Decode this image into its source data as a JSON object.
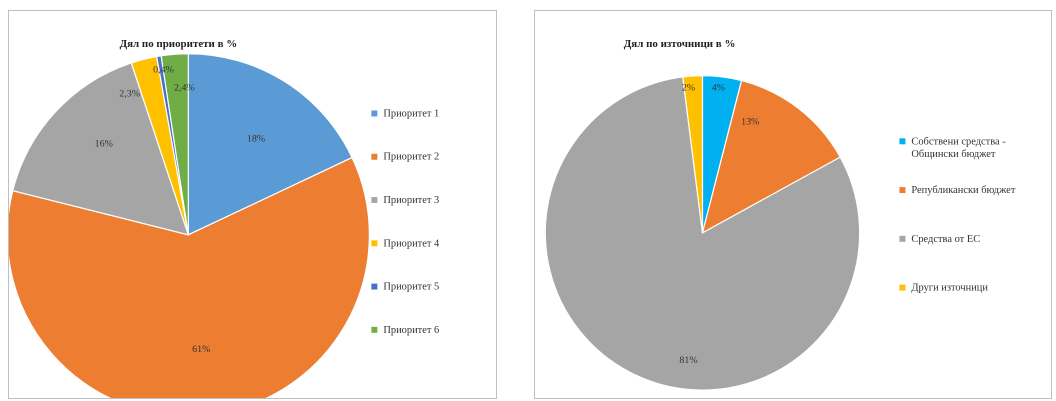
{
  "chart_data": [
    {
      "type": "pie",
      "title": "Дял по приоритети в %",
      "categories": [
        "Приоритет 1",
        "Приоритет 2",
        "Приоритет 3",
        "Приоритет 4",
        "Приоритет 5",
        "Приоритет 6"
      ],
      "values": [
        18,
        61,
        16,
        2.3,
        0.4,
        2.4
      ],
      "labels": [
        "18%",
        "61%",
        "16%",
        "2,3%",
        "0,4%",
        "2,4%"
      ],
      "colors": [
        "#5b9bd5",
        "#ed7d31",
        "#a5a5a5",
        "#ffc000",
        "#4472c4",
        "#70ad47"
      ],
      "legend_position": "right"
    },
    {
      "type": "pie",
      "title": "Дял по източници в %",
      "categories": [
        "Собствени средства - Общински бюджет",
        "Републикански бюджет",
        "Средства от ЕС",
        "Други източници"
      ],
      "legend_lines": [
        [
          "Собствени средства -",
          "Общински бюджет"
        ],
        [
          "Републикански бюджет"
        ],
        [
          "Средства от ЕС"
        ],
        [
          "Други източници"
        ]
      ],
      "values": [
        4,
        13,
        81,
        2
      ],
      "labels": [
        "4%",
        "13%",
        "81%",
        "2%"
      ],
      "colors": [
        "#00b0f0",
        "#ed7d31",
        "#a5a5a5",
        "#ffc000"
      ],
      "legend_position": "right"
    }
  ]
}
